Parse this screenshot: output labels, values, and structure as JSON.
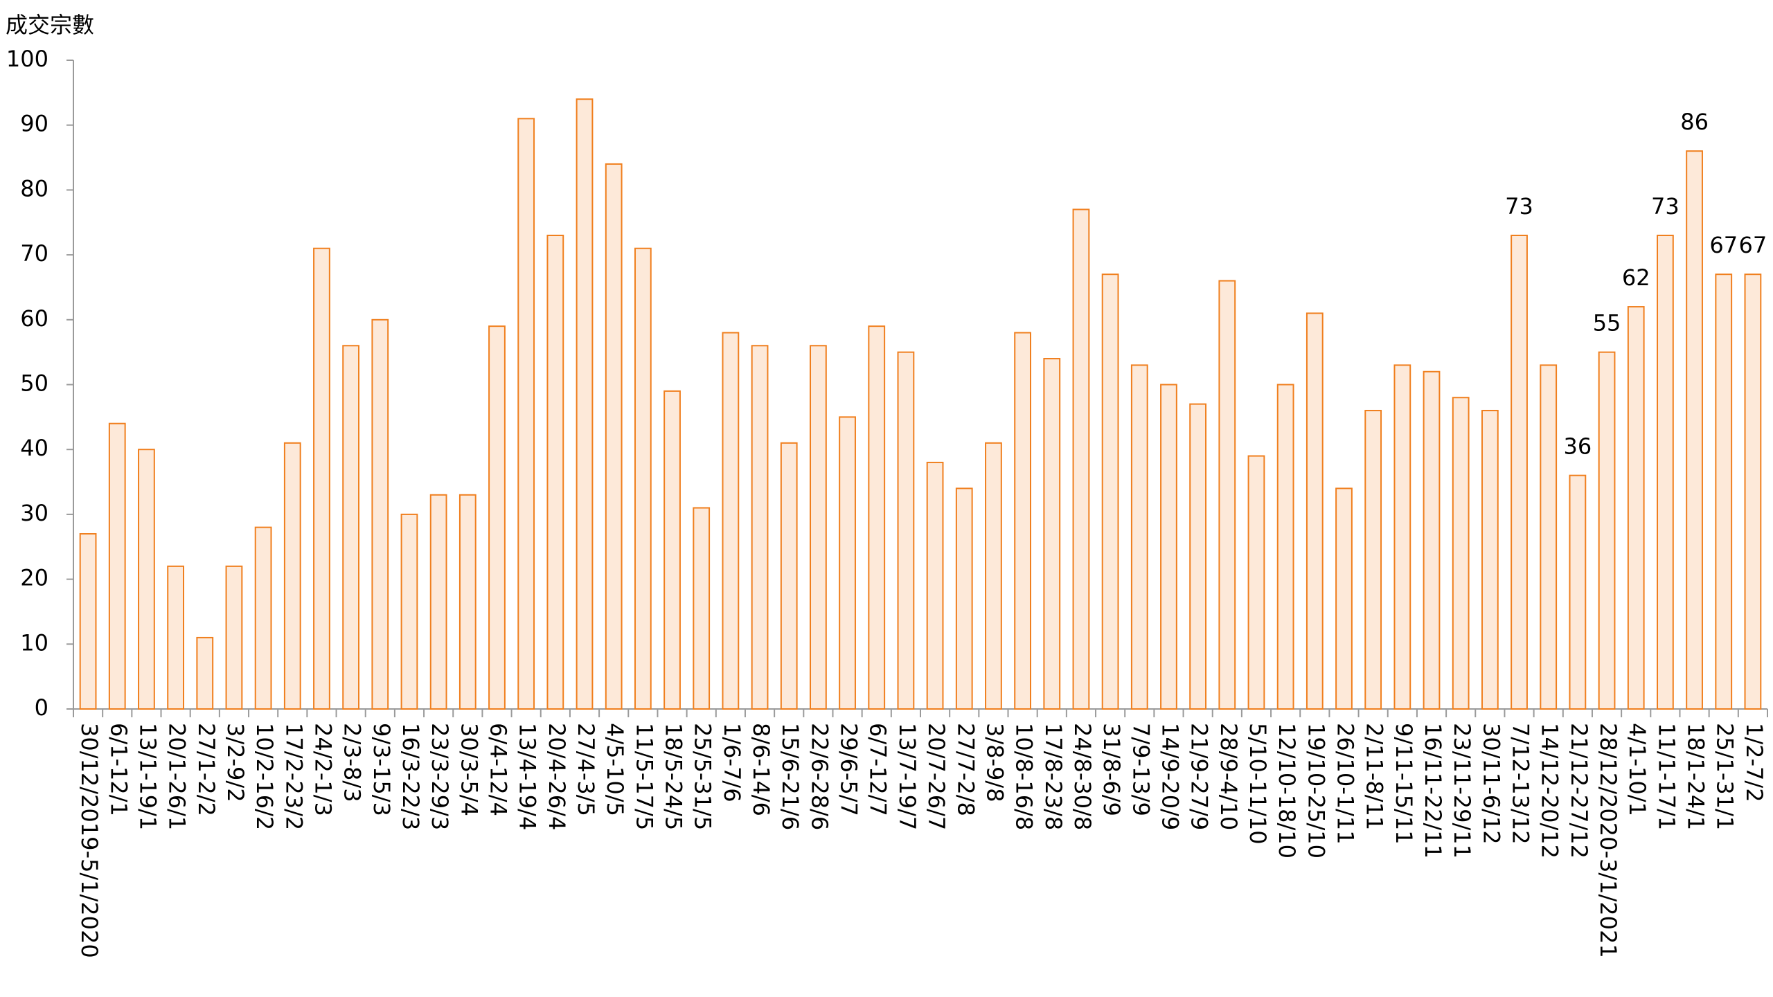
{
  "chart_data": {
    "type": "bar",
    "title": "成交宗數",
    "categories": [
      "30/12/2019-5/1/2020",
      "6/1-12/1",
      "13/1-19/1",
      "20/1-26/1",
      "27/1-2/2",
      "3/2-9/2",
      "10/2-16/2",
      "17/2-23/2",
      "24/2-1/3",
      "2/3-8/3",
      "9/3-15/3",
      "16/3-22/3",
      "23/3-29/3",
      "30/3-5/4",
      "6/4-12/4",
      "13/4-19/4",
      "20/4-26/4",
      "27/4-3/5",
      "4/5-10/5",
      "11/5-17/5",
      "18/5-24/5",
      "25/5-31/5",
      "1/6-7/6",
      "8/6-14/6",
      "15/6-21/6",
      "22/6-28/6",
      "29/6-5/7",
      "6/7-12/7",
      "13/7-19/7",
      "20/7-26/7",
      "27/7-2/8",
      "3/8-9/8",
      "10/8-16/8",
      "17/8-23/8",
      "24/8-30/8",
      "31/8-6/9",
      "7/9-13/9",
      "14/9-20/9",
      "21/9-27/9",
      "28/9-4/10",
      "5/10-11/10",
      "12/10-18/10",
      "19/10-25/10",
      "26/10-1/11",
      "2/11-8/11",
      "9/11-15/11",
      "16/11-22/11",
      "23/11-29/11",
      "30/11-6/12",
      "7/12-13/12",
      "14/12-20/12",
      "21/12-27/12",
      "28/12/2020-3/1/2021",
      "4/1-10/1",
      "11/1-17/1",
      "18/1-24/1",
      "25/1-31/1",
      "1/2-7/2"
    ],
    "values": [
      27,
      44,
      40,
      22,
      11,
      22,
      28,
      41,
      71,
      56,
      60,
      30,
      33,
      33,
      59,
      91,
      73,
      94,
      84,
      71,
      49,
      31,
      58,
      56,
      41,
      56,
      45,
      59,
      55,
      38,
      34,
      41,
      58,
      54,
      77,
      67,
      53,
      50,
      47,
      66,
      39,
      50,
      61,
      34,
      46,
      53,
      52,
      48,
      46,
      73,
      53,
      36,
      55,
      62,
      73,
      86,
      67,
      67
    ],
    "value_labels": [
      null,
      null,
      null,
      null,
      null,
      null,
      null,
      null,
      null,
      null,
      null,
      null,
      null,
      null,
      null,
      null,
      null,
      null,
      null,
      null,
      null,
      null,
      null,
      null,
      null,
      null,
      null,
      null,
      null,
      null,
      null,
      null,
      null,
      null,
      null,
      null,
      null,
      null,
      null,
      null,
      null,
      null,
      null,
      null,
      null,
      null,
      null,
      null,
      null,
      73,
      null,
      36,
      55,
      62,
      73,
      86,
      67,
      67
    ],
    "color": "#fde9d9",
    "edge_color": "#f07f1e",
    "ylim": [
      0,
      100
    ],
    "yticks": [
      0,
      10,
      20,
      30,
      40,
      50,
      60,
      70,
      80,
      90,
      100
    ],
    "grid": false
  }
}
